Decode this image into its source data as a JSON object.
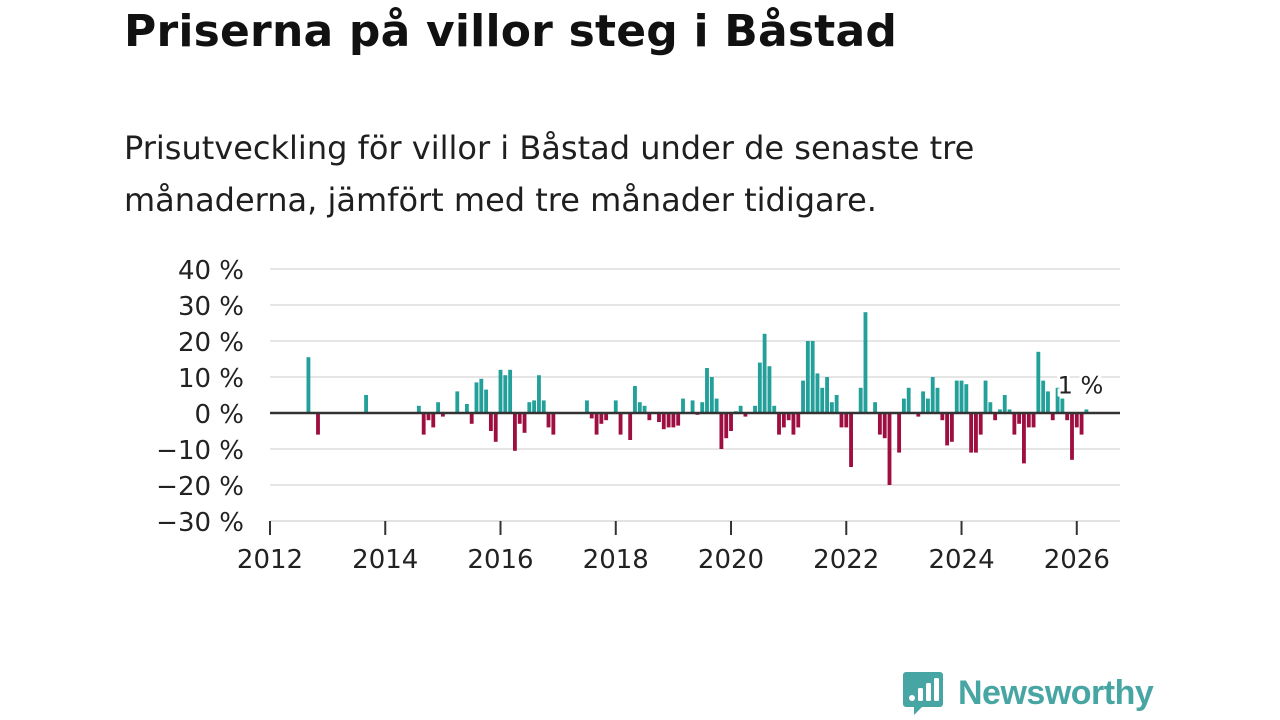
{
  "title": "Priserna på villor steg i Båstad",
  "subtitle": "Prisutveckling för villor i Båstad under de senaste tre månaderna, jämfört med tre månader tidigare.",
  "brand": {
    "name": "Newsworthy",
    "icon": "newsworthy-logo-icon"
  },
  "colors": {
    "positive": "#23a09a",
    "negative": "#9e0e40",
    "grid": "#dddddd",
    "zero": "#333333",
    "text": "#222222"
  },
  "chart_data": {
    "type": "bar",
    "title": "Priserna på villor steg i Båstad",
    "xlabel": "",
    "ylabel": "",
    "ylim": [
      -30,
      40
    ],
    "xlim": [
      2012,
      2026.75
    ],
    "yticks": [
      -30,
      -20,
      -10,
      0,
      10,
      20,
      30,
      40
    ],
    "ytick_labels": [
      "−30 %",
      "−20 %",
      "−10 %",
      "0 %",
      "10 %",
      "20 %",
      "30 %",
      "40 %"
    ],
    "xticks": [
      2012,
      2014,
      2016,
      2018,
      2020,
      2022,
      2024,
      2026
    ],
    "xtick_labels": [
      "2012",
      "2014",
      "2016",
      "2018",
      "2020",
      "2022",
      "2024",
      "2026"
    ],
    "annotation": {
      "text": "1 %",
      "x": 2026.083,
      "y": 1
    },
    "series": [
      {
        "name": "Prisutveckling villor Båstad",
        "points": [
          {
            "x": 2012.667,
            "y": 15.5
          },
          {
            "x": 2012.833,
            "y": -6
          },
          {
            "x": 2013.667,
            "y": 5
          },
          {
            "x": 2014.583,
            "y": 2
          },
          {
            "x": 2014.667,
            "y": -6
          },
          {
            "x": 2014.75,
            "y": -2
          },
          {
            "x": 2014.833,
            "y": -4
          },
          {
            "x": 2014.917,
            "y": 3
          },
          {
            "x": 2015.0,
            "y": -1
          },
          {
            "x": 2015.25,
            "y": 6
          },
          {
            "x": 2015.417,
            "y": 2.5
          },
          {
            "x": 2015.5,
            "y": -3
          },
          {
            "x": 2015.583,
            "y": 8.5
          },
          {
            "x": 2015.667,
            "y": 9.5
          },
          {
            "x": 2015.75,
            "y": 6.5
          },
          {
            "x": 2015.833,
            "y": -5
          },
          {
            "x": 2015.917,
            "y": -8
          },
          {
            "x": 2016.0,
            "y": 12
          },
          {
            "x": 2016.083,
            "y": 10.5
          },
          {
            "x": 2016.167,
            "y": 12
          },
          {
            "x": 2016.25,
            "y": -10.5
          },
          {
            "x": 2016.333,
            "y": -3
          },
          {
            "x": 2016.417,
            "y": -5.5
          },
          {
            "x": 2016.5,
            "y": 3
          },
          {
            "x": 2016.583,
            "y": 3.5
          },
          {
            "x": 2016.667,
            "y": 10.5
          },
          {
            "x": 2016.75,
            "y": 3.5
          },
          {
            "x": 2016.833,
            "y": -4
          },
          {
            "x": 2016.917,
            "y": -6
          },
          {
            "x": 2017.5,
            "y": 3.5
          },
          {
            "x": 2017.583,
            "y": -1.5
          },
          {
            "x": 2017.667,
            "y": -6
          },
          {
            "x": 2017.75,
            "y": -3
          },
          {
            "x": 2017.833,
            "y": -2
          },
          {
            "x": 2018.0,
            "y": 3.5
          },
          {
            "x": 2018.083,
            "y": -6
          },
          {
            "x": 2018.25,
            "y": -7.5
          },
          {
            "x": 2018.333,
            "y": 7.5
          },
          {
            "x": 2018.417,
            "y": 3
          },
          {
            "x": 2018.5,
            "y": 2
          },
          {
            "x": 2018.583,
            "y": -2
          },
          {
            "x": 2018.75,
            "y": -2.5
          },
          {
            "x": 2018.833,
            "y": -4.5
          },
          {
            "x": 2018.917,
            "y": -4
          },
          {
            "x": 2019.0,
            "y": -4
          },
          {
            "x": 2019.083,
            "y": -3.5
          },
          {
            "x": 2019.167,
            "y": 4
          },
          {
            "x": 2019.333,
            "y": 3.5
          },
          {
            "x": 2019.417,
            "y": -0.5
          },
          {
            "x": 2019.5,
            "y": 3
          },
          {
            "x": 2019.583,
            "y": 12.5
          },
          {
            "x": 2019.667,
            "y": 10
          },
          {
            "x": 2019.75,
            "y": 4
          },
          {
            "x": 2019.833,
            "y": -10
          },
          {
            "x": 2019.917,
            "y": -7
          },
          {
            "x": 2020.0,
            "y": -5
          },
          {
            "x": 2020.083,
            "y": 0.5
          },
          {
            "x": 2020.167,
            "y": 2
          },
          {
            "x": 2020.25,
            "y": -1
          },
          {
            "x": 2020.417,
            "y": 2
          },
          {
            "x": 2020.5,
            "y": 14
          },
          {
            "x": 2020.583,
            "y": 22
          },
          {
            "x": 2020.667,
            "y": 13
          },
          {
            "x": 2020.75,
            "y": 2
          },
          {
            "x": 2020.833,
            "y": -6
          },
          {
            "x": 2020.917,
            "y": -4
          },
          {
            "x": 2021.0,
            "y": -2
          },
          {
            "x": 2021.083,
            "y": -6
          },
          {
            "x": 2021.167,
            "y": -4
          },
          {
            "x": 2021.25,
            "y": 9
          },
          {
            "x": 2021.333,
            "y": 20
          },
          {
            "x": 2021.417,
            "y": 20
          },
          {
            "x": 2021.5,
            "y": 11
          },
          {
            "x": 2021.583,
            "y": 7
          },
          {
            "x": 2021.667,
            "y": 10
          },
          {
            "x": 2021.75,
            "y": 3
          },
          {
            "x": 2021.833,
            "y": 5
          },
          {
            "x": 2021.917,
            "y": -4
          },
          {
            "x": 2022.0,
            "y": -4
          },
          {
            "x": 2022.083,
            "y": -15
          },
          {
            "x": 2022.25,
            "y": 7
          },
          {
            "x": 2022.333,
            "y": 28
          },
          {
            "x": 2022.5,
            "y": 3
          },
          {
            "x": 2022.583,
            "y": -6
          },
          {
            "x": 2022.667,
            "y": -7
          },
          {
            "x": 2022.75,
            "y": -20
          },
          {
            "x": 2022.917,
            "y": -11
          },
          {
            "x": 2023.0,
            "y": 4
          },
          {
            "x": 2023.083,
            "y": 7
          },
          {
            "x": 2023.25,
            "y": -1
          },
          {
            "x": 2023.333,
            "y": 6
          },
          {
            "x": 2023.417,
            "y": 4
          },
          {
            "x": 2023.5,
            "y": 10
          },
          {
            "x": 2023.583,
            "y": 7
          },
          {
            "x": 2023.667,
            "y": -2
          },
          {
            "x": 2023.75,
            "y": -9
          },
          {
            "x": 2023.833,
            "y": -8
          },
          {
            "x": 2023.917,
            "y": 9
          },
          {
            "x": 2024.0,
            "y": 9
          },
          {
            "x": 2024.083,
            "y": 8
          },
          {
            "x": 2024.167,
            "y": -11
          },
          {
            "x": 2024.25,
            "y": -11
          },
          {
            "x": 2024.333,
            "y": -6
          },
          {
            "x": 2024.417,
            "y": 9
          },
          {
            "x": 2024.5,
            "y": 3
          },
          {
            "x": 2024.583,
            "y": -2
          },
          {
            "x": 2024.667,
            "y": 1
          },
          {
            "x": 2024.75,
            "y": 5
          },
          {
            "x": 2024.833,
            "y": 1
          },
          {
            "x": 2024.917,
            "y": -6
          },
          {
            "x": 2025.0,
            "y": -3
          },
          {
            "x": 2025.083,
            "y": -14
          },
          {
            "x": 2025.167,
            "y": -4
          },
          {
            "x": 2025.25,
            "y": -4
          },
          {
            "x": 2025.333,
            "y": 17
          },
          {
            "x": 2025.417,
            "y": 9
          },
          {
            "x": 2025.5,
            "y": 6
          },
          {
            "x": 2025.583,
            "y": -2
          },
          {
            "x": 2025.667,
            "y": 7
          },
          {
            "x": 2025.75,
            "y": 4
          },
          {
            "x": 2025.833,
            "y": -2
          },
          {
            "x": 2025.917,
            "y": -13
          },
          {
            "x": 2026.0,
            "y": -4
          },
          {
            "x": 2026.083,
            "y": -6
          },
          {
            "x": 2026.167,
            "y": 1
          }
        ]
      }
    ]
  }
}
